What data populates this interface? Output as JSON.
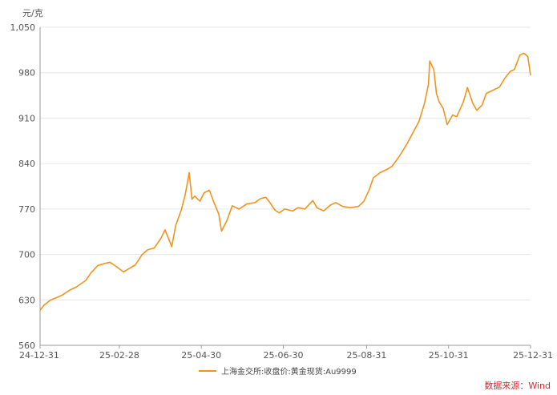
{
  "chart_data": {
    "type": "line",
    "y_unit": "元/克",
    "ylim": [
      560,
      1050
    ],
    "y_ticks": [
      "560",
      "630",
      "700",
      "770",
      "840",
      "910",
      "980",
      "1,050"
    ],
    "y_tick_values": [
      560,
      630,
      700,
      770,
      840,
      910,
      980,
      1050
    ],
    "x_ticks": [
      "24-12-31",
      "25-02-28",
      "25-04-30",
      "25-06-30",
      "25-08-31",
      "25-10-31",
      "25-12-31"
    ],
    "grid": "horizontal",
    "legend_position": "bottom",
    "series": [
      {
        "name": "上海金交所:收盘价:黄金现货:Au9999",
        "color": "#f0941e",
        "points": [
          [
            "24-12-31",
            614
          ],
          [
            "25-01-03",
            622
          ],
          [
            "25-01-08",
            630
          ],
          [
            "25-01-13",
            634
          ],
          [
            "25-01-17",
            638
          ],
          [
            "25-01-22",
            645
          ],
          [
            "25-01-27",
            650
          ],
          [
            "25-02-03",
            660
          ],
          [
            "25-02-07",
            672
          ],
          [
            "25-02-12",
            683
          ],
          [
            "25-02-17",
            686
          ],
          [
            "25-02-21",
            688
          ],
          [
            "25-02-26",
            681
          ],
          [
            "25-03-03",
            673
          ],
          [
            "25-03-07",
            678
          ],
          [
            "25-03-12",
            684
          ],
          [
            "25-03-17",
            700
          ],
          [
            "25-03-21",
            707
          ],
          [
            "25-03-26",
            710
          ],
          [
            "25-03-31",
            725
          ],
          [
            "25-04-03",
            738
          ],
          [
            "25-04-08",
            712
          ],
          [
            "25-04-11",
            745
          ],
          [
            "25-04-15",
            768
          ],
          [
            "25-04-18",
            792
          ],
          [
            "25-04-21",
            826
          ],
          [
            "25-04-23",
            785
          ],
          [
            "25-04-25",
            790
          ],
          [
            "25-04-29",
            782
          ],
          [
            "25-05-02",
            795
          ],
          [
            "25-05-06",
            799
          ],
          [
            "25-05-09",
            782
          ],
          [
            "25-05-13",
            762
          ],
          [
            "25-05-15",
            736
          ],
          [
            "25-05-19",
            752
          ],
          [
            "25-05-23",
            775
          ],
          [
            "25-05-28",
            770
          ],
          [
            "25-06-03",
            778
          ],
          [
            "25-06-09",
            780
          ],
          [
            "25-06-13",
            786
          ],
          [
            "25-06-17",
            788
          ],
          [
            "25-06-20",
            780
          ],
          [
            "25-06-24",
            768
          ],
          [
            "25-06-27",
            764
          ],
          [
            "25-07-01",
            770
          ],
          [
            "25-07-07",
            767
          ],
          [
            "25-07-11",
            772
          ],
          [
            "25-07-16",
            770
          ],
          [
            "25-07-22",
            783
          ],
          [
            "25-07-25",
            772
          ],
          [
            "25-07-30",
            767
          ],
          [
            "25-08-04",
            776
          ],
          [
            "25-08-08",
            780
          ],
          [
            "25-08-13",
            774
          ],
          [
            "25-08-19",
            772
          ],
          [
            "25-08-25",
            774
          ],
          [
            "25-08-29",
            782
          ],
          [
            "25-09-02",
            800
          ],
          [
            "25-09-05",
            818
          ],
          [
            "25-09-10",
            826
          ],
          [
            "25-09-16",
            832
          ],
          [
            "25-09-19",
            836
          ],
          [
            "25-09-24",
            850
          ],
          [
            "25-09-30",
            870
          ],
          [
            "25-10-09",
            905
          ],
          [
            "25-10-13",
            932
          ],
          [
            "25-10-16",
            962
          ],
          [
            "25-10-17",
            998
          ],
          [
            "25-10-20",
            985
          ],
          [
            "25-10-22",
            948
          ],
          [
            "25-10-24",
            935
          ],
          [
            "25-10-27",
            925
          ],
          [
            "25-10-30",
            900
          ],
          [
            "25-11-03",
            915
          ],
          [
            "25-11-06",
            912
          ],
          [
            "25-11-11",
            935
          ],
          [
            "25-11-14",
            957
          ],
          [
            "25-11-18",
            933
          ],
          [
            "25-11-21",
            922
          ],
          [
            "25-11-25",
            930
          ],
          [
            "25-11-28",
            948
          ],
          [
            "25-12-03",
            953
          ],
          [
            "25-12-08",
            958
          ],
          [
            "25-12-12",
            972
          ],
          [
            "25-12-16",
            982
          ],
          [
            "25-12-19",
            985
          ],
          [
            "25-12-23",
            1007
          ],
          [
            "25-12-26",
            1010
          ],
          [
            "25-12-29",
            1005
          ],
          [
            "25-12-31",
            976
          ]
        ]
      }
    ]
  },
  "source": "数据来源：Wind"
}
